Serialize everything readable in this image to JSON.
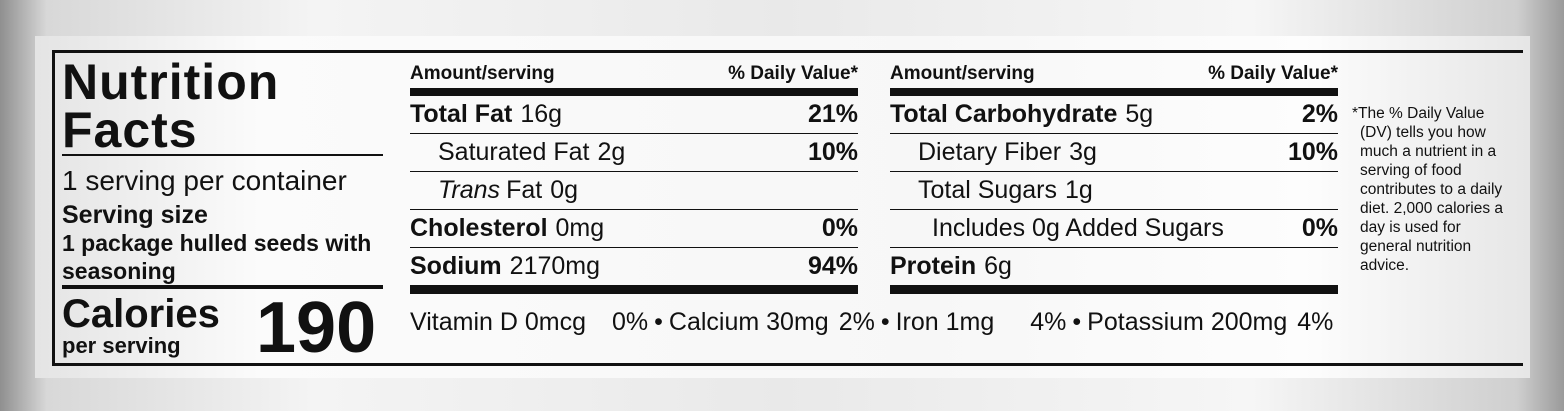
{
  "title": "Nutrition Facts",
  "servings_per_container": "1 serving per container",
  "serving_size_label": "Serving size",
  "serving_size": "1 package hulled seeds with seasoning",
  "calories_label": "Calories",
  "calories_sublabel": "per serving",
  "calories": 190,
  "columns": [
    {
      "header_left": "Amount/serving",
      "header_right": "% Daily Value*",
      "rows": [
        {
          "name": "Total Fat",
          "amount": "16g",
          "dv": "21%",
          "bold": true,
          "indent": 0
        },
        {
          "name": "Saturated Fat",
          "amount": "2g",
          "dv": "10%",
          "bold": false,
          "indent": 1
        },
        {
          "italic_prefix": "Trans",
          "name": "Fat",
          "amount": "0g",
          "bold": false,
          "indent": 1
        },
        {
          "name": "Cholesterol",
          "amount": "0mg",
          "dv": "0%",
          "bold": true,
          "indent": 0
        },
        {
          "name": "Sodium",
          "amount": "2170mg",
          "dv": "94%",
          "bold": true,
          "indent": 0
        }
      ]
    },
    {
      "header_left": "Amount/serving",
      "header_right": "% Daily Value*",
      "rows": [
        {
          "name": "Total Carbohydrate",
          "amount": "5g",
          "dv": "2%",
          "bold": true,
          "indent": 0
        },
        {
          "name": "Dietary Fiber",
          "amount": "3g",
          "dv": "10%",
          "bold": false,
          "indent": 1
        },
        {
          "name": "Total Sugars",
          "amount": "1g",
          "bold": false,
          "indent": 1
        },
        {
          "name": "Includes 0g Added Sugars",
          "dv": "0%",
          "bold": false,
          "indent": 2
        },
        {
          "name": "Protein",
          "amount": "6g",
          "bold": true,
          "indent": 0
        }
      ]
    }
  ],
  "vitamins": [
    {
      "name": "Vitamin D 0mcg",
      "dv": "0%"
    },
    {
      "name": "Calcium 30mg",
      "dv": "2%"
    },
    {
      "name": "Iron 1mg",
      "dv": "4%"
    },
    {
      "name": "Potassium 200mg",
      "dv": "4%"
    }
  ],
  "footnote": "*The % Daily Value (DV) tells you how much a nutrient in a serving of food contributes to a daily diet. 2,000 calories a day is used for general nutrition advice."
}
